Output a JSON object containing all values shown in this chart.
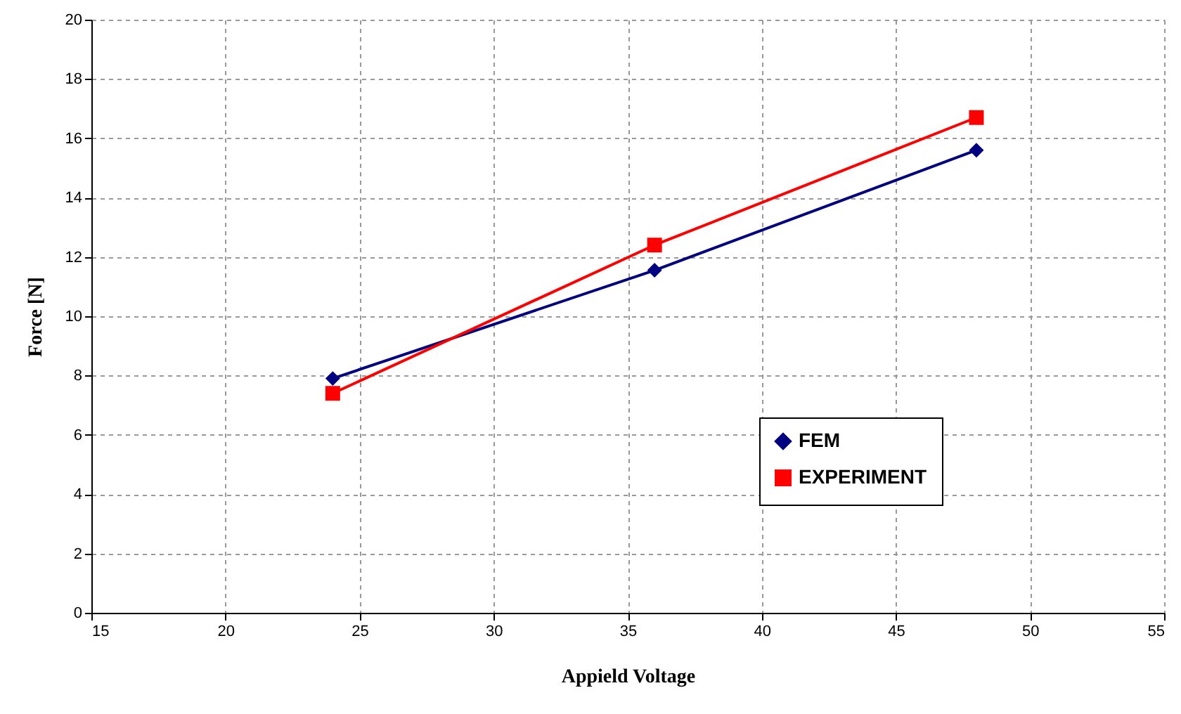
{
  "chart_data": {
    "type": "line",
    "xlabel": "Appield Voltage",
    "ylabel": "Force [N]",
    "x": [
      24,
      36,
      48
    ],
    "series": [
      {
        "name": "FEM",
        "color": "#000080",
        "marker": "diamond",
        "values": [
          7.9,
          11.55,
          15.6
        ]
      },
      {
        "name": "EXPERIMENT",
        "color": "#ff0000",
        "marker": "square",
        "values": [
          7.4,
          12.4,
          16.7
        ]
      }
    ],
    "xlim": [
      15,
      55
    ],
    "xticks": [
      15,
      20,
      25,
      30,
      35,
      40,
      45,
      50,
      55
    ],
    "ylim": [
      0,
      20
    ],
    "yticks": [
      0,
      2,
      4,
      6,
      8,
      10,
      12,
      14,
      16,
      18,
      20
    ],
    "grid": true,
    "legend": "bottom right",
    "line_style": "solid"
  }
}
